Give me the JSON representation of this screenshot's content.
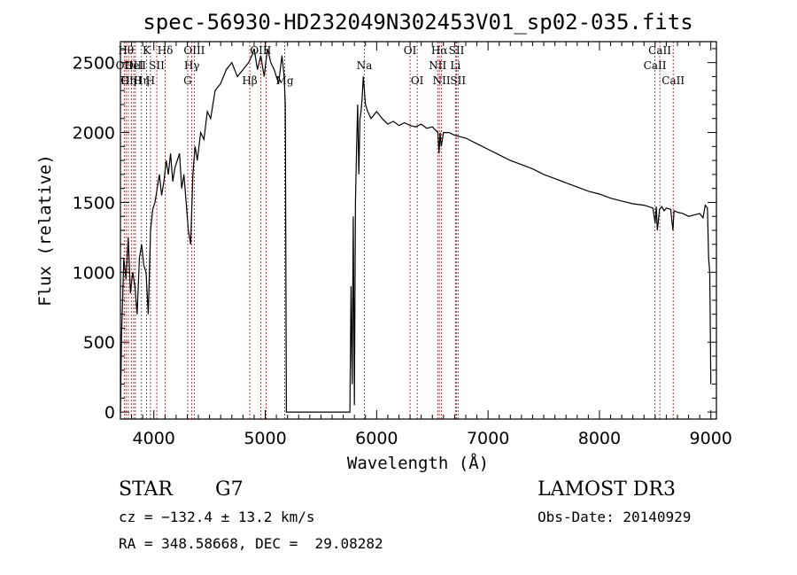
{
  "chart_data": {
    "type": "line",
    "title": "spec-56930-HD232049N302453V01_sp02-035.fits",
    "xlabel": "Wavelength (Å)",
    "ylabel": "Flux (relative)",
    "xlim": [
      3700,
      9050
    ],
    "ylim": [
      -50,
      2650
    ],
    "xticks": [
      "4000",
      "5000",
      "6000",
      "7000",
      "8000",
      "9000"
    ],
    "yticks": [
      "0",
      "500",
      "1000",
      "1500",
      "2000",
      "2500"
    ],
    "grid": false,
    "series": [
      {
        "x": [
          3700,
          3710,
          3730,
          3750,
          3770,
          3790,
          3810,
          3830,
          3850,
          3870,
          3890,
          3910,
          3930,
          3950,
          3970,
          3990,
          4010,
          4030,
          4050,
          4070,
          4090,
          4110,
          4130,
          4150,
          4170,
          4190,
          4210,
          4230,
          4250,
          4270,
          4290,
          4310,
          4330,
          4350,
          4370,
          4390,
          4420,
          4450,
          4480,
          4510,
          4550,
          4600,
          4650,
          4700,
          4750,
          4800,
          4850,
          4880,
          4900,
          4930,
          4960,
          4990,
          5020,
          5050,
          5080,
          5100,
          5120,
          5150,
          5170,
          5180,
          5190,
          5760,
          5770,
          5780,
          5790,
          5800,
          5810,
          5820,
          5830,
          5840,
          5850,
          5860,
          5870,
          5880,
          5890,
          5900,
          5920,
          5950,
          6000,
          6050,
          6100,
          6150,
          6200,
          6250,
          6300,
          6350,
          6400,
          6450,
          6500,
          6550,
          6560,
          6570,
          6580,
          6600,
          6650,
          6700,
          6750,
          6800,
          6900,
          7000,
          7100,
          7200,
          7300,
          7400,
          7500,
          7600,
          7700,
          7800,
          7900,
          8000,
          8100,
          8200,
          8300,
          8400,
          8480,
          8500,
          8510,
          8520,
          8540,
          8560,
          8580,
          8600,
          8640,
          8660,
          8670,
          8700,
          8750,
          8800,
          8850,
          8900,
          8930,
          8950,
          8970,
          8980,
          8990,
          9000
        ],
        "y": [
          0,
          550,
          1100,
          950,
          1250,
          850,
          1000,
          900,
          700,
          1100,
          1200,
          1050,
          1000,
          700,
          1300,
          1450,
          1500,
          1600,
          1700,
          1550,
          1650,
          1800,
          1700,
          1850,
          1650,
          1750,
          1800,
          1850,
          1600,
          1700,
          1500,
          1300,
          1200,
          1700,
          1900,
          1800,
          2000,
          1950,
          2150,
          2100,
          2300,
          2350,
          2450,
          2500,
          2400,
          2450,
          2500,
          2550,
          2600,
          2450,
          2550,
          2400,
          2600,
          2500,
          2450,
          2400,
          2350,
          2550,
          2400,
          2200,
          0,
          0,
          900,
          200,
          1400,
          50,
          1500,
          1900,
          2200,
          1700,
          2100,
          2150,
          2250,
          2400,
          2300,
          2200,
          2150,
          2100,
          2150,
          2100,
          2060,
          2080,
          2050,
          2070,
          2050,
          2040,
          2060,
          2030,
          2040,
          2000,
          1850,
          2000,
          1900,
          2000,
          2000,
          1980,
          1970,
          1960,
          1920,
          1880,
          1840,
          1800,
          1770,
          1740,
          1700,
          1670,
          1640,
          1610,
          1580,
          1560,
          1530,
          1510,
          1490,
          1480,
          1460,
          1350,
          1470,
          1300,
          1450,
          1470,
          1440,
          1460,
          1450,
          1300,
          1440,
          1430,
          1420,
          1400,
          1410,
          1420,
          1390,
          1480,
          1460,
          1100,
          1000,
          200
        ]
      }
    ],
    "lines": [
      {
        "x": 3734,
        "label": "OII",
        "row": 1
      },
      {
        "x": 3750,
        "label": "Hθ",
        "row": 0
      },
      {
        "x": 3771,
        "label": "Hη",
        "row": 2
      },
      {
        "x": 3798,
        "label": "OIII",
        "row": 2
      },
      {
        "x": 3820,
        "label": "HeI",
        "row": 1
      },
      {
        "x": 3835,
        "label": "OIII",
        "row": 1
      },
      {
        "x": 3889,
        "label": "Hη",
        "row": 2
      },
      {
        "x": 3934,
        "label": "K",
        "row": 0
      },
      {
        "x": 3969,
        "label": "H",
        "row": 2
      },
      {
        "x": 4026,
        "label": "SII",
        "row": 1
      },
      {
        "x": 4102,
        "label": "Hδ",
        "row": 0
      },
      {
        "x": 4304,
        "label": "G",
        "row": 2
      },
      {
        "x": 4341,
        "label": "Hγ",
        "row": 1
      },
      {
        "x": 4363,
        "label": "OIII",
        "row": 0
      },
      {
        "x": 4861,
        "label": "Hβ",
        "row": 2
      },
      {
        "x": 4959,
        "label": "OIII",
        "row": 0
      },
      {
        "x": 5007,
        "label": "",
        "row": 1
      },
      {
        "x": 5175,
        "label": "Mg",
        "row": 2
      },
      {
        "x": 5890,
        "label": "Na",
        "row": 1
      },
      {
        "x": 6300,
        "label": "OI",
        "row": 0
      },
      {
        "x": 6364,
        "label": "OI",
        "row": 2
      },
      {
        "x": 6548,
        "label": "NII",
        "row": 1
      },
      {
        "x": 6563,
        "label": "Hα",
        "row": 0
      },
      {
        "x": 6583,
        "label": "NII",
        "row": 2
      },
      {
        "x": 6707,
        "label": "Li",
        "row": 1
      },
      {
        "x": 6717,
        "label": "SII",
        "row": 0
      },
      {
        "x": 6731,
        "label": "SII",
        "row": 2
      },
      {
        "x": 8498,
        "label": "CaII",
        "row": 1
      },
      {
        "x": 8542,
        "label": "CaII",
        "row": 0
      },
      {
        "x": 8662,
        "label": "CaII",
        "row": 2
      }
    ]
  },
  "info": {
    "class_label": "STAR",
    "subclass": "G7",
    "survey": "LAMOST DR3",
    "cz": "cz = −132.4 ± 13.2 km/s",
    "obs_date": "Obs-Date: 20140929",
    "coords": "RA = 348.58668, DEC =  29.08282"
  },
  "colors": {
    "spectrum": "#000000",
    "line_marker": "#b22222",
    "axes": "#000000"
  }
}
